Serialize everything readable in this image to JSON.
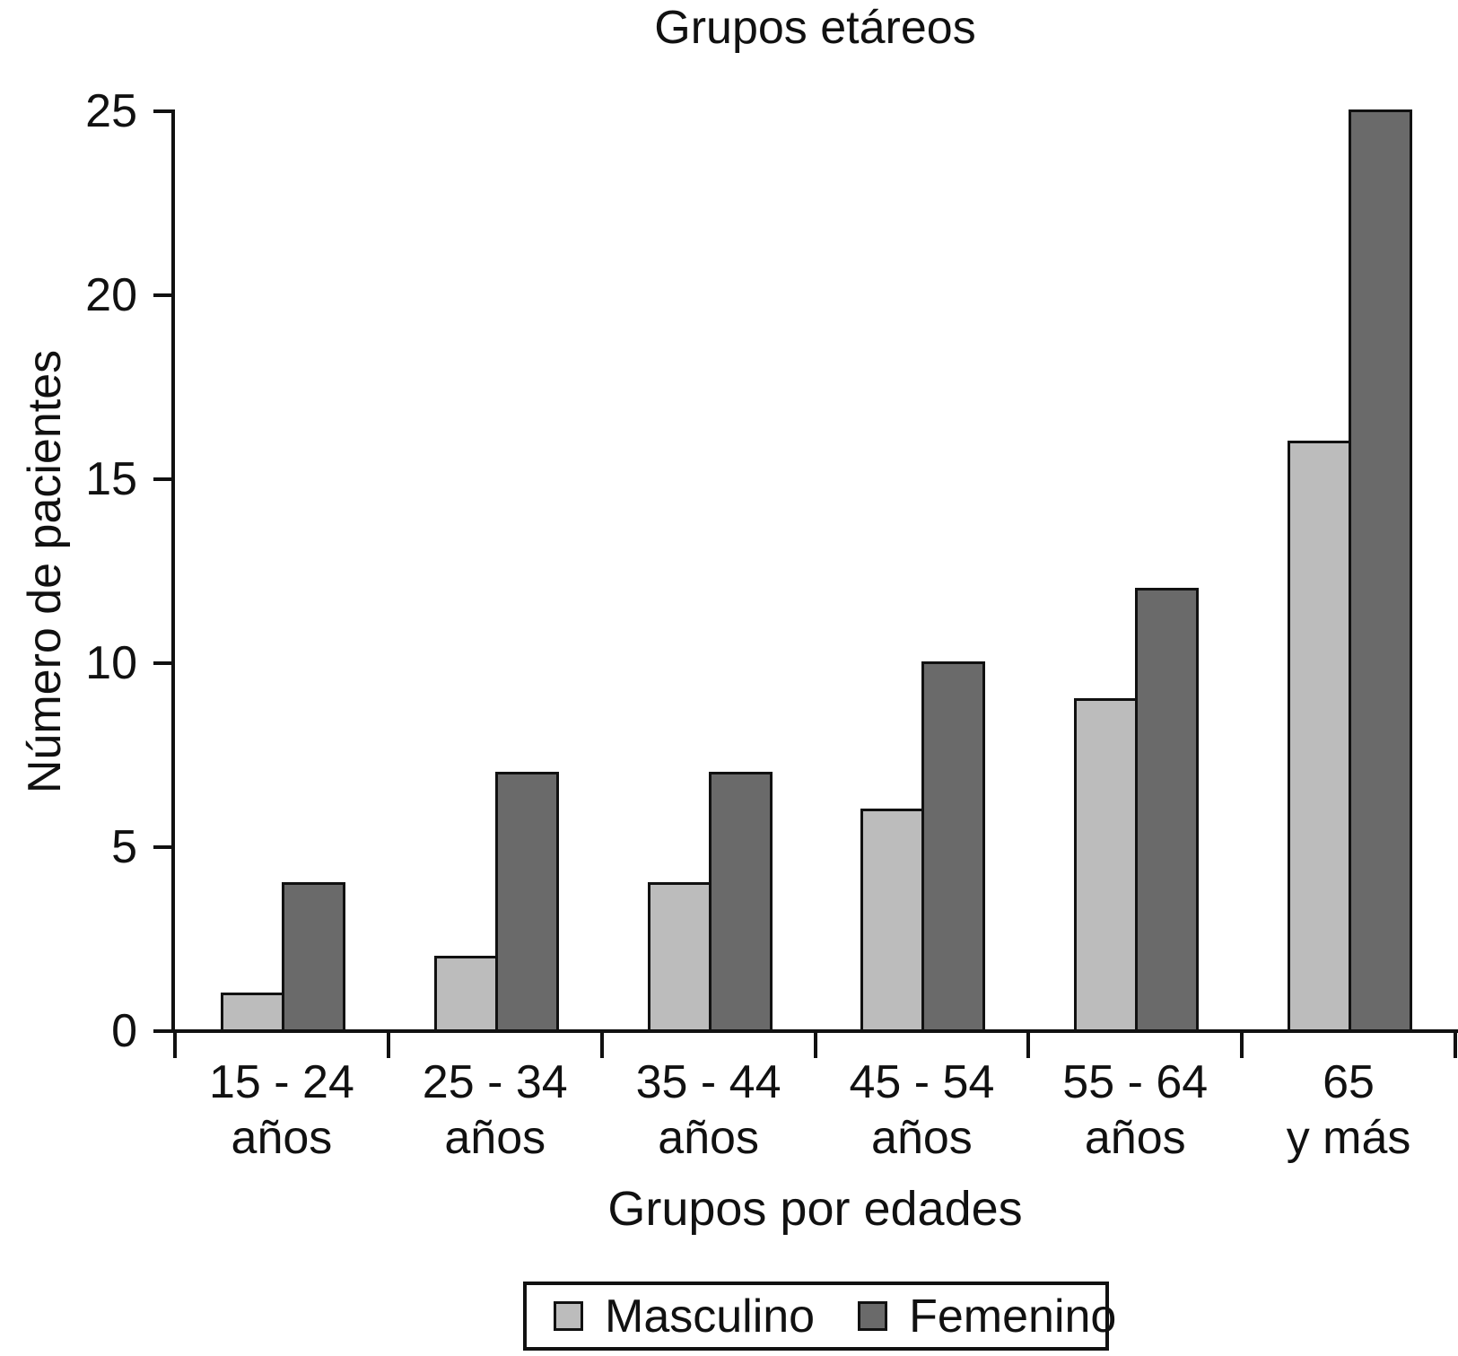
{
  "chart_data": {
    "type": "bar",
    "title": "Grupos etáreos",
    "xlabel": "Grupos por edades",
    "ylabel": "Número de pacientes",
    "ylim": [
      0,
      25
    ],
    "yticks": [
      0,
      5,
      10,
      15,
      20,
      25
    ],
    "grid": false,
    "legend_position": "bottom-center",
    "categories": [
      {
        "line1": "15 - 24",
        "line2": "años"
      },
      {
        "line1": "25 - 34",
        "line2": "años"
      },
      {
        "line1": "35 - 44",
        "line2": "años"
      },
      {
        "line1": "45 - 54",
        "line2": "años"
      },
      {
        "line1": "55 - 64",
        "line2": "años"
      },
      {
        "line1": "65",
        "line2": "y más"
      }
    ],
    "series": [
      {
        "name": "Masculino",
        "color": "#bcbcbc",
        "values": [
          1,
          2,
          4,
          6,
          9,
          16
        ]
      },
      {
        "name": "Femenino",
        "color": "#6a6a6a",
        "values": [
          4,
          7,
          7,
          10,
          12,
          25
        ]
      }
    ],
    "outline_color": "#111111",
    "background": "#ffffff"
  }
}
